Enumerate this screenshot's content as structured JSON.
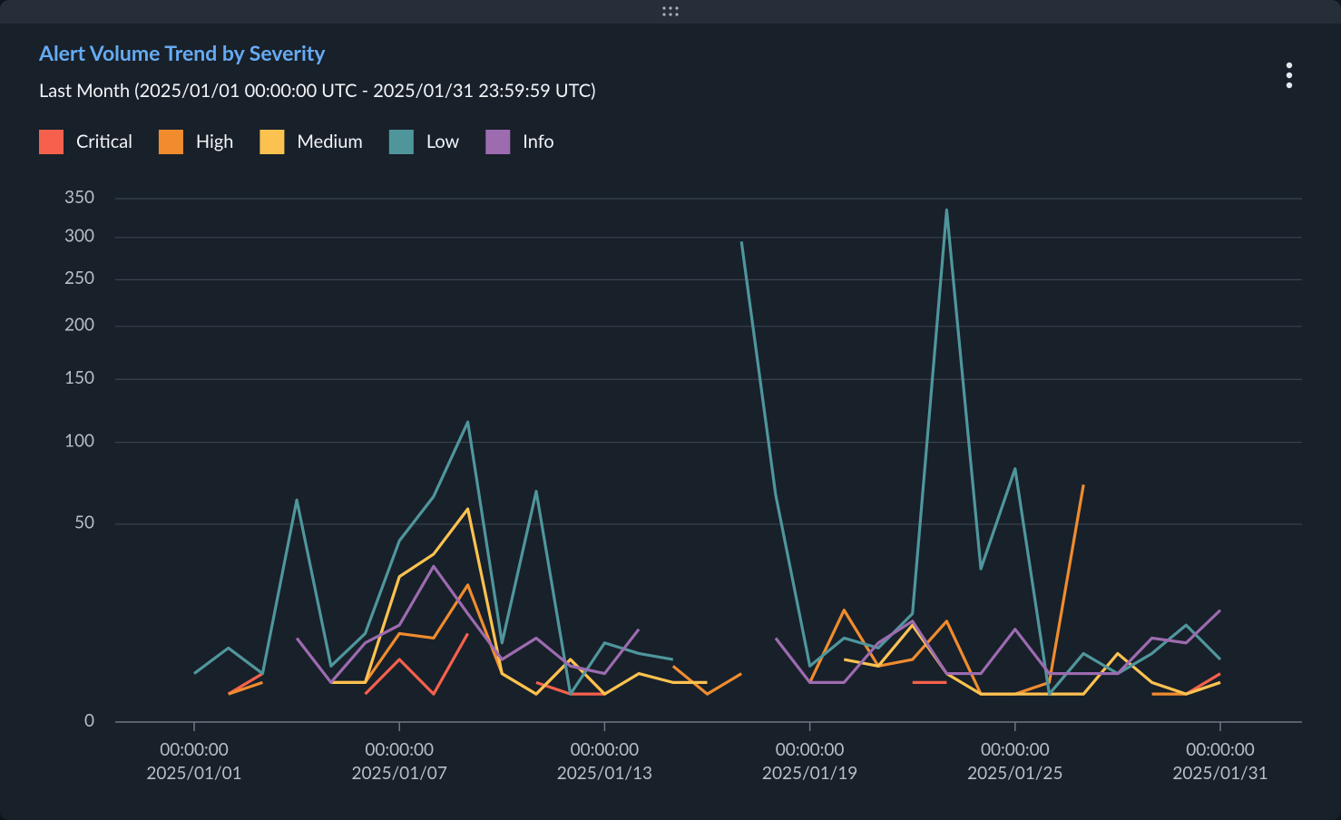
{
  "chart_data": {
    "type": "line",
    "title": "Alert Volume Trend by Severity",
    "subtitle": "Last Month (2025/01/01 00:00:00 UTC - 2025/01/31 23:59:59 UTC)",
    "x": [
      "2025/01/01",
      "2025/01/02",
      "2025/01/03",
      "2025/01/04",
      "2025/01/05",
      "2025/01/06",
      "2025/01/07",
      "2025/01/08",
      "2025/01/09",
      "2025/01/10",
      "2025/01/11",
      "2025/01/12",
      "2025/01/13",
      "2025/01/14",
      "2025/01/15",
      "2025/01/16",
      "2025/01/17",
      "2025/01/18",
      "2025/01/19",
      "2025/01/20",
      "2025/01/21",
      "2025/01/22",
      "2025/01/23",
      "2025/01/24",
      "2025/01/25",
      "2025/01/26",
      "2025/01/27",
      "2025/01/28",
      "2025/01/29",
      "2025/01/30",
      "2025/01/31"
    ],
    "xticks": [
      {
        "value": "2025/01/01",
        "label": [
          "00:00:00",
          "2025/01/01"
        ]
      },
      {
        "value": "2025/01/07",
        "label": [
          "00:00:00",
          "2025/01/07"
        ]
      },
      {
        "value": "2025/01/13",
        "label": [
          "00:00:00",
          "2025/01/13"
        ]
      },
      {
        "value": "2025/01/19",
        "label": [
          "00:00:00",
          "2025/01/19"
        ]
      },
      {
        "value": "2025/01/25",
        "label": [
          "00:00:00",
          "2025/01/25"
        ]
      },
      {
        "value": "2025/01/31",
        "label": [
          "00:00:00",
          "2025/01/31"
        ]
      }
    ],
    "yscale": "sqrt",
    "ylim": [
      0,
      350
    ],
    "yticks": [
      0,
      50,
      100,
      150,
      200,
      250,
      300,
      350
    ],
    "grid": true,
    "legend": "top-left",
    "series": [
      {
        "name": "Critical",
        "color": "#f5614c",
        "values": [
          null,
          1,
          3,
          null,
          null,
          1,
          5,
          1,
          10,
          null,
          2,
          1,
          1,
          null,
          null,
          null,
          null,
          null,
          null,
          null,
          null,
          2,
          2,
          null,
          null,
          null,
          null,
          null,
          null,
          1,
          3
        ]
      },
      {
        "name": "High",
        "color": "#f08c2e",
        "values": [
          null,
          1,
          2,
          null,
          2,
          2,
          10,
          9,
          24,
          3,
          1,
          5,
          1,
          null,
          4,
          1,
          3,
          null,
          2,
          16,
          4,
          5,
          13,
          1,
          1,
          2,
          72,
          null,
          1,
          1,
          2
        ]
      },
      {
        "name": "Medium",
        "color": "#fcc250",
        "values": [
          null,
          null,
          null,
          null,
          2,
          2,
          27,
          36,
          58,
          3,
          1,
          5,
          1,
          3,
          2,
          2,
          null,
          null,
          null,
          5,
          4,
          12,
          3,
          1,
          1,
          1,
          1,
          6,
          2,
          1,
          2
        ]
      },
      {
        "name": "Low",
        "color": "#4f969c",
        "values": [
          3,
          7,
          3,
          63,
          4,
          10,
          42,
          65,
          115,
          8,
          68,
          1,
          8,
          6,
          5,
          null,
          295,
          66,
          4,
          9,
          7,
          15,
          335,
          30,
          82,
          1,
          6,
          3,
          6,
          12,
          5
        ]
      },
      {
        "name": "Info",
        "color": "#9d6bb0",
        "values": [
          null,
          null,
          null,
          9,
          2,
          8,
          12,
          31,
          15,
          5,
          9,
          4,
          3,
          11,
          null,
          null,
          null,
          9,
          2,
          2,
          8,
          13,
          3,
          3,
          11,
          3,
          3,
          3,
          9,
          8,
          16
        ]
      }
    ]
  }
}
